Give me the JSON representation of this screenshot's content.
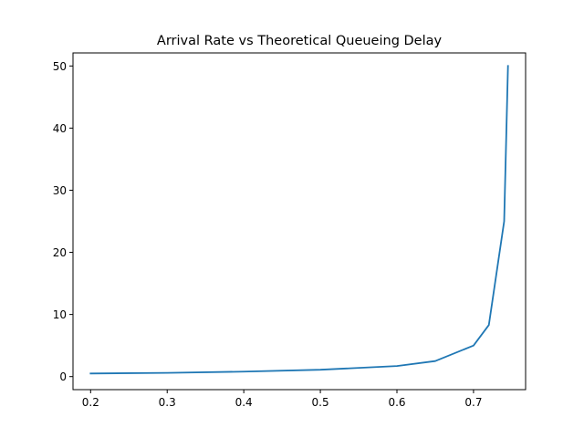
{
  "chart_data": {
    "type": "line",
    "title": "Arrival Rate vs Theoretical Queueing Delay",
    "xlabel": "",
    "ylabel": "",
    "xlim": [
      0.177,
      0.768
    ],
    "ylim": [
      -2.1,
      52.1
    ],
    "xticks": [
      0.2,
      0.3,
      0.4,
      0.5,
      0.6,
      0.7
    ],
    "yticks": [
      0,
      10,
      20,
      30,
      40,
      50
    ],
    "grid": false,
    "series": [
      {
        "color": "#1f77b4",
        "x": [
          0.2,
          0.3,
          0.4,
          0.5,
          0.6,
          0.65,
          0.7,
          0.72,
          0.74,
          0.745
        ],
        "y": [
          0.5,
          0.6,
          0.8,
          1.1,
          1.7,
          2.5,
          5.0,
          8.3,
          25.0,
          50.0
        ]
      }
    ]
  }
}
